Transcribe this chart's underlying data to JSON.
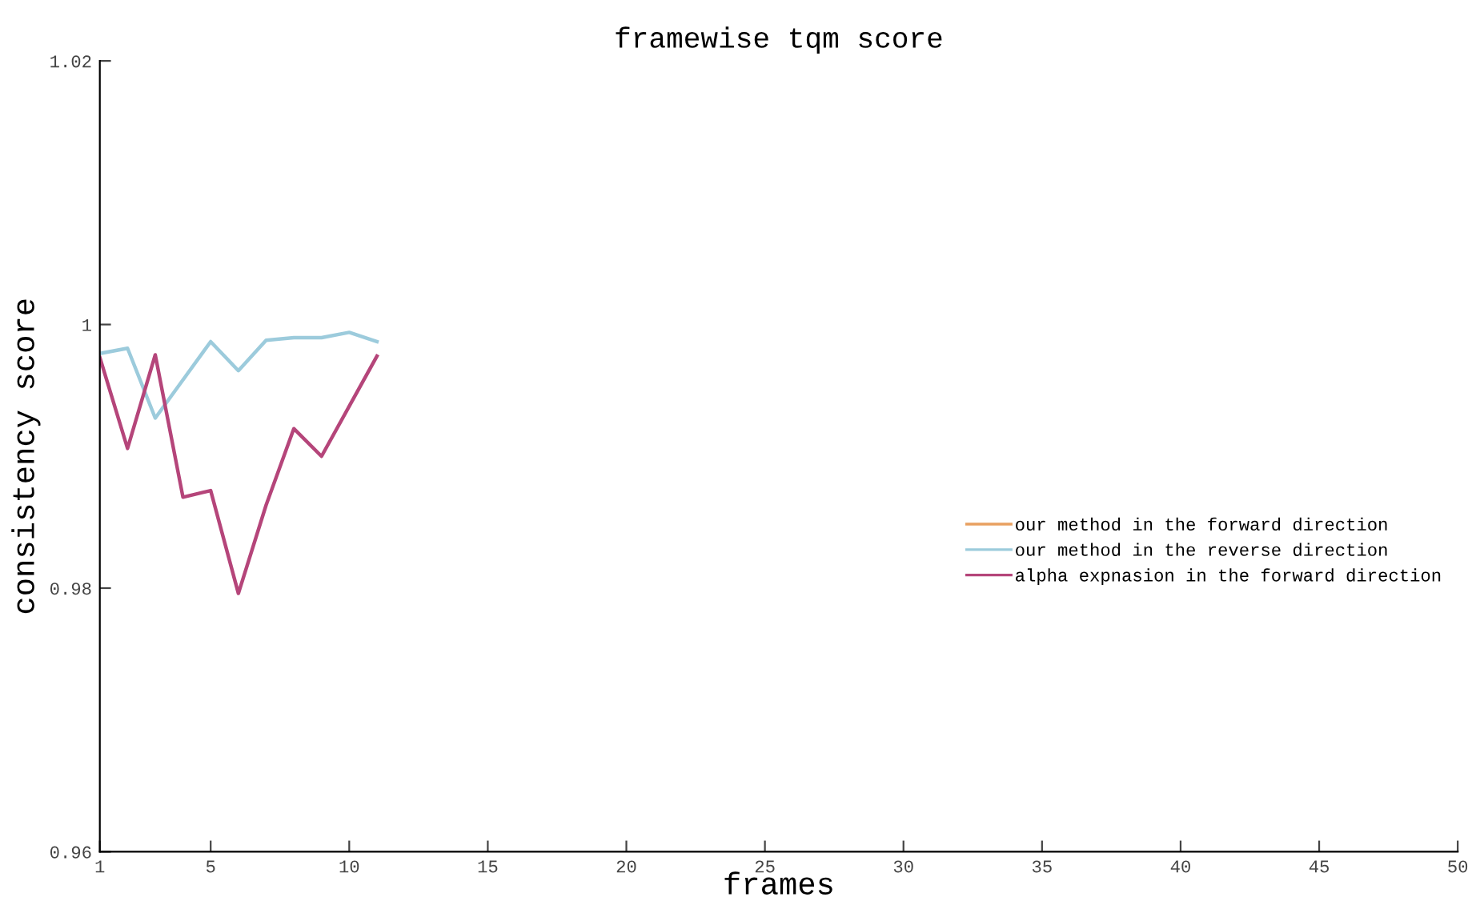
{
  "chart_data": {
    "type": "line",
    "title": "framewise tqm score",
    "xlabel": "frames",
    "ylabel": "consistency score",
    "x": [
      1,
      2,
      3,
      4,
      5,
      6,
      7,
      8,
      9,
      10,
      11
    ],
    "series": [
      {
        "name": "our method in the forward direction",
        "color": "#e8a060",
        "values": [
          null,
          null,
          null,
          null,
          null,
          null,
          null,
          null,
          null,
          null,
          null
        ]
      },
      {
        "name": "our method in the reverse direction",
        "color": "#9ccbdc",
        "values": [
          0.9978,
          0.9982,
          0.9929,
          0.9958,
          0.9987,
          0.9965,
          0.9988,
          0.999,
          0.999,
          0.9994,
          0.9987
        ]
      },
      {
        "name": "alpha expnasion in the forward direction",
        "color": "#b5457a",
        "values": [
          0.9975,
          0.9906,
          0.9977,
          0.9869,
          0.9874,
          0.9796,
          0.9863,
          0.9921,
          0.99,
          0.9938,
          0.9976
        ]
      }
    ],
    "xlim": [
      1,
      50
    ],
    "xticks": [
      1,
      5,
      10,
      15,
      20,
      25,
      30,
      35,
      40,
      45,
      50
    ],
    "ylim": [
      0.96,
      1.02
    ],
    "yticks": [
      0.96,
      0.98,
      {
        "value": 1.0,
        "label": "1"
      },
      1.02
    ],
    "grid": false,
    "legend": "right",
    "line_style": "solid",
    "marker": "none"
  }
}
